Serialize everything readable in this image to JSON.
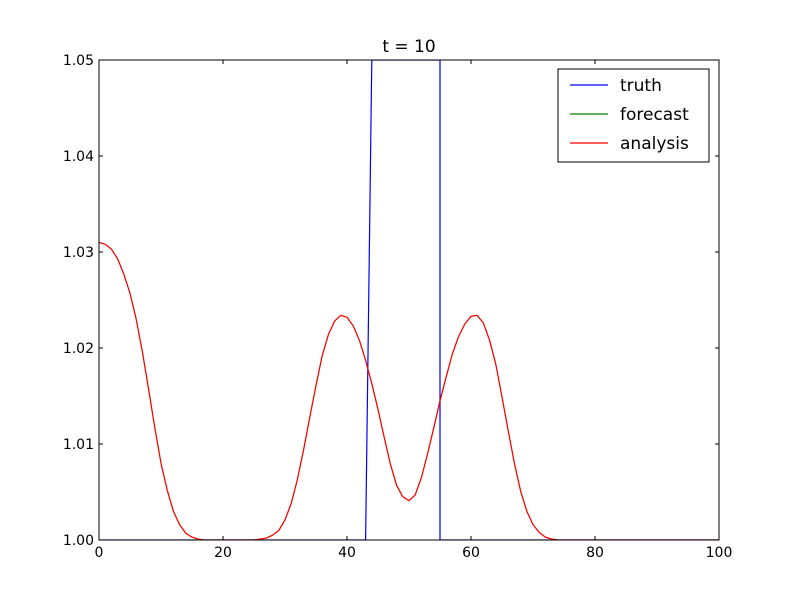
{
  "chart_data": {
    "type": "line",
    "title": "t = 10",
    "xlabel": "",
    "ylabel": "",
    "xlim": [
      0,
      100
    ],
    "ylim": [
      1.0,
      1.05
    ],
    "x_ticks": [
      "0",
      "20",
      "40",
      "60",
      "80",
      "100"
    ],
    "y_ticks": [
      "1.00",
      "1.01",
      "1.02",
      "1.03",
      "1.04",
      "1.05"
    ],
    "legend_position": "top-right",
    "grid": false,
    "series": [
      {
        "name": "truth",
        "color": "#0000ff",
        "x": [
          0,
          43,
          43,
          44,
          45,
          54,
          55,
          55,
          100
        ],
        "y": [
          1.0,
          1.0,
          1.0,
          1.05,
          1.05,
          1.05,
          1.05,
          1.0,
          1.0
        ]
      },
      {
        "name": "forecast",
        "color": "#008000",
        "x": [
          0,
          1,
          2,
          3,
          4,
          5,
          6,
          7,
          8,
          9,
          10,
          11,
          12,
          13,
          14,
          15,
          16,
          17,
          18,
          19,
          20,
          21,
          22,
          23,
          24,
          25,
          26,
          27,
          28,
          29,
          30,
          31,
          32,
          33,
          34,
          35,
          36,
          37,
          38,
          39,
          40,
          41,
          42,
          43,
          44,
          45,
          46,
          47,
          48,
          49,
          50,
          51,
          52,
          53,
          54,
          55,
          56,
          57,
          58,
          59,
          60,
          61,
          62,
          63,
          64,
          65,
          66,
          67,
          68,
          69,
          70,
          71,
          72,
          73,
          74,
          75,
          100
        ],
        "y": [
          1.031,
          1.0308,
          1.0303,
          1.0293,
          1.0277,
          1.0257,
          1.023,
          1.0196,
          1.0157,
          1.0117,
          1.008,
          1.0052,
          1.003,
          1.0016,
          1.0007,
          1.0003,
          1.0001,
          1.0,
          1.0,
          1.0,
          1.0,
          1.0,
          1.0,
          1.0,
          1.0,
          1.0,
          1.0001,
          1.0002,
          1.0005,
          1.001,
          1.0021,
          1.0038,
          1.0063,
          1.0094,
          1.0128,
          1.0161,
          1.0192,
          1.0214,
          1.0228,
          1.0234,
          1.0232,
          1.0223,
          1.0208,
          1.0187,
          1.0163,
          1.0136,
          1.0107,
          1.0079,
          1.0057,
          1.0045,
          1.0041,
          1.0047,
          1.0065,
          1.009,
          1.0117,
          1.0145,
          1.017,
          1.0194,
          1.0212,
          1.0225,
          1.0233,
          1.0234,
          1.0226,
          1.0208,
          1.0183,
          1.0149,
          1.0114,
          1.008,
          1.0051,
          1.003,
          1.0016,
          1.0008,
          1.0003,
          1.0001,
          1.0,
          1.0,
          1.0
        ]
      },
      {
        "name": "analysis",
        "color": "#ff0000",
        "x": [
          0,
          1,
          2,
          3,
          4,
          5,
          6,
          7,
          8,
          9,
          10,
          11,
          12,
          13,
          14,
          15,
          16,
          17,
          18,
          19,
          20,
          21,
          22,
          23,
          24,
          25,
          26,
          27,
          28,
          29,
          30,
          31,
          32,
          33,
          34,
          35,
          36,
          37,
          38,
          39,
          40,
          41,
          42,
          43,
          44,
          45,
          46,
          47,
          48,
          49,
          50,
          51,
          52,
          53,
          54,
          55,
          56,
          57,
          58,
          59,
          60,
          61,
          62,
          63,
          64,
          65,
          66,
          67,
          68,
          69,
          70,
          71,
          72,
          73,
          74,
          75,
          100
        ],
        "y": [
          1.031,
          1.0308,
          1.0303,
          1.0293,
          1.0277,
          1.0257,
          1.023,
          1.0196,
          1.0157,
          1.0117,
          1.008,
          1.0052,
          1.003,
          1.0016,
          1.0007,
          1.0003,
          1.0001,
          1.0,
          1.0,
          1.0,
          1.0,
          1.0,
          1.0,
          1.0,
          1.0,
          1.0,
          1.0001,
          1.0002,
          1.0005,
          1.001,
          1.0021,
          1.0038,
          1.0063,
          1.0094,
          1.0128,
          1.0161,
          1.0192,
          1.0214,
          1.0228,
          1.0234,
          1.0232,
          1.0223,
          1.0208,
          1.0187,
          1.0163,
          1.0136,
          1.0107,
          1.0079,
          1.0057,
          1.0045,
          1.0041,
          1.0047,
          1.0065,
          1.009,
          1.0117,
          1.0145,
          1.017,
          1.0194,
          1.0212,
          1.0225,
          1.0233,
          1.0234,
          1.0226,
          1.0208,
          1.0183,
          1.0149,
          1.0114,
          1.008,
          1.0051,
          1.003,
          1.0016,
          1.0008,
          1.0003,
          1.0001,
          1.0,
          1.0,
          1.0
        ]
      }
    ]
  }
}
